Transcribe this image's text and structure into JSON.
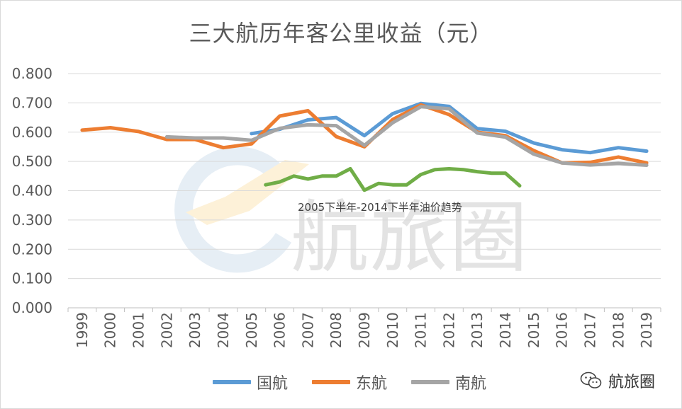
{
  "chart_data": {
    "type": "line",
    "title": "三大航历年客公里收益（元）",
    "xlabel": "",
    "ylabel": "",
    "ylim": [
      0,
      0.8
    ],
    "yticks": [
      "0.000",
      "0.100",
      "0.200",
      "0.300",
      "0.400",
      "0.500",
      "0.600",
      "0.700",
      "0.800"
    ],
    "categories": [
      "1999",
      "2000",
      "2001",
      "2002",
      "2003",
      "2004",
      "2005",
      "2006",
      "2007",
      "2008",
      "2009",
      "2010",
      "2011",
      "2012",
      "2013",
      "2014",
      "2015",
      "2016",
      "2017",
      "2018",
      "2019"
    ],
    "grid": true,
    "legend": "bottom",
    "series": [
      {
        "name": "国航",
        "color": "#5b9bd5",
        "points": [
          [
            6,
            0.595
          ],
          [
            7,
            0.61
          ],
          [
            8,
            0.642
          ],
          [
            9,
            0.65
          ],
          [
            10,
            0.588
          ],
          [
            11,
            0.663
          ],
          [
            12,
            0.698
          ],
          [
            13,
            0.688
          ],
          [
            14,
            0.612
          ],
          [
            15,
            0.603
          ],
          [
            16,
            0.563
          ],
          [
            17,
            0.54
          ],
          [
            18,
            0.53
          ],
          [
            19,
            0.547
          ],
          [
            20,
            0.535
          ]
        ]
      },
      {
        "name": "东航",
        "color": "#ed7d31",
        "points": [
          [
            0,
            0.607
          ],
          [
            1,
            0.615
          ],
          [
            2,
            0.602
          ],
          [
            3,
            0.575
          ],
          [
            4,
            0.575
          ],
          [
            5,
            0.547
          ],
          [
            6,
            0.56
          ],
          [
            7,
            0.655
          ],
          [
            8,
            0.673
          ],
          [
            9,
            0.585
          ],
          [
            10,
            0.55
          ],
          [
            11,
            0.643
          ],
          [
            12,
            0.693
          ],
          [
            13,
            0.66
          ],
          [
            14,
            0.6
          ],
          [
            15,
            0.588
          ],
          [
            16,
            0.537
          ],
          [
            17,
            0.495
          ],
          [
            18,
            0.497
          ],
          [
            19,
            0.515
          ],
          [
            20,
            0.495
          ]
        ]
      },
      {
        "name": "南航",
        "color": "#a5a5a5",
        "points": [
          [
            3,
            0.584
          ],
          [
            4,
            0.58
          ],
          [
            5,
            0.58
          ],
          [
            6,
            0.572
          ],
          [
            7,
            0.613
          ],
          [
            8,
            0.625
          ],
          [
            9,
            0.622
          ],
          [
            10,
            0.555
          ],
          [
            11,
            0.632
          ],
          [
            12,
            0.687
          ],
          [
            13,
            0.68
          ],
          [
            14,
            0.597
          ],
          [
            15,
            0.583
          ],
          [
            16,
            0.525
          ],
          [
            17,
            0.495
          ],
          [
            18,
            0.488
          ],
          [
            19,
            0.493
          ],
          [
            20,
            0.487
          ]
        ]
      },
      {
        "color": "#70ad47",
        "points": [
          [
            6.5,
            0.42
          ],
          [
            7,
            0.43
          ],
          [
            7.5,
            0.45
          ],
          [
            8,
            0.44
          ],
          [
            8.5,
            0.45
          ],
          [
            9,
            0.45
          ],
          [
            9.5,
            0.475
          ],
          [
            10,
            0.402
          ],
          [
            10.5,
            0.425
          ],
          [
            11,
            0.42
          ],
          [
            11.5,
            0.42
          ],
          [
            12,
            0.455
          ],
          [
            12.5,
            0.472
          ],
          [
            13,
            0.475
          ],
          [
            13.5,
            0.472
          ],
          [
            14,
            0.465
          ],
          [
            14.5,
            0.46
          ],
          [
            15,
            0.46
          ],
          [
            15.5,
            0.417
          ]
        ]
      }
    ],
    "annotation": "2005下半年-2014下半年油价趋势"
  },
  "watermark": {
    "text": "航旅圈",
    "icon": "wechat-icon"
  }
}
